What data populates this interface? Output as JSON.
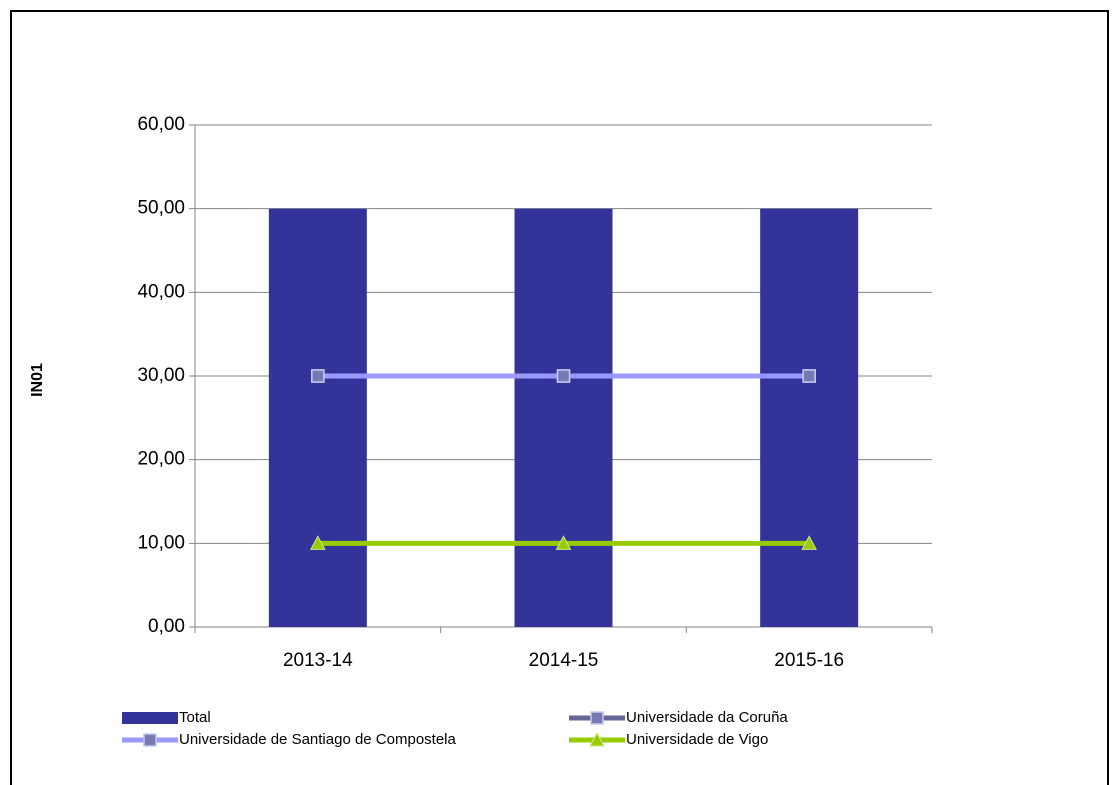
{
  "chart_data": {
    "type": "bar",
    "y_label": "IN01",
    "categories": [
      "2013-14",
      "2014-15",
      "2015-16"
    ],
    "series": [
      {
        "name": "Total",
        "type": "bar",
        "color": "#333399",
        "values": [
          50,
          50,
          50
        ]
      },
      {
        "name": "Universidade da Coruña",
        "type": "line",
        "marker": "square",
        "color": "#666699",
        "values": [
          30,
          30,
          30
        ]
      },
      {
        "name": "Universidade de Santiago de Compostela",
        "type": "line",
        "marker": "square",
        "color": "#9999ff",
        "values": [
          30,
          30,
          30
        ]
      },
      {
        "name": "Universidade de Vigo",
        "type": "line",
        "marker": "triangle",
        "color": "#99cc00",
        "values": [
          10,
          10,
          10
        ]
      }
    ],
    "ylim": [
      0,
      60
    ],
    "yticks": [
      {
        "value": 0,
        "label": "0,00"
      },
      {
        "value": 10,
        "label": "10,00"
      },
      {
        "value": 20,
        "label": "20,00"
      },
      {
        "value": 30,
        "label": "30,00"
      },
      {
        "value": 40,
        "label": "40,00"
      },
      {
        "value": 50,
        "label": "50,00"
      },
      {
        "value": 60,
        "label": "60,00"
      }
    ],
    "grid": true,
    "legend": "bottom"
  }
}
